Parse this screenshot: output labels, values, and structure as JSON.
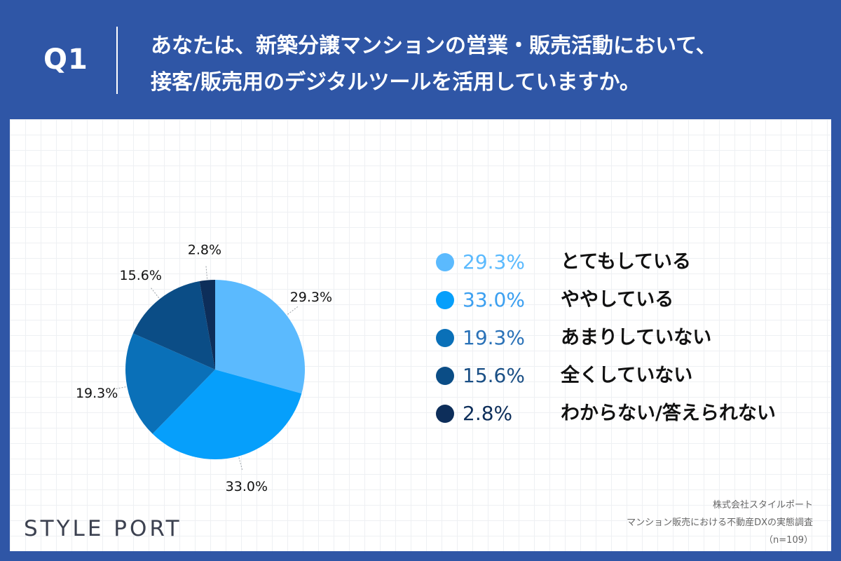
{
  "header": {
    "question_label": "Q1",
    "question_lines": [
      "あなたは、新築分譲マンションの営業・販売活動において、",
      "接客/販売用のデジタルツールを活用していますか。"
    ]
  },
  "chart_data": {
    "type": "pie",
    "title": "",
    "slices": [
      {
        "label": "とてもしている",
        "value": 29.3,
        "display": "29.3%",
        "color": "#5bbafe"
      },
      {
        "label": "ややしている",
        "value": 33.0,
        "display": "33.0%",
        "color": "#069ffb"
      },
      {
        "label": "あまりしていない",
        "value": 19.3,
        "display": "19.3%",
        "color": "#0a70b8"
      },
      {
        "label": "全くしていない",
        "value": 15.6,
        "display": "15.6%",
        "color": "#0b4d86"
      },
      {
        "label": "わからない/答えられない",
        "value": 2.8,
        "display": "2.8%",
        "color": "#0d2e5a"
      }
    ],
    "start": "12 o'clock",
    "direction": "clockwise",
    "legend_placement": "right"
  },
  "legend": {
    "pct_colors": [
      "#5bbafe",
      "#3b9ff0",
      "#2a72b8",
      "#1a4f85",
      "#0d2e5a"
    ]
  },
  "footer": {
    "brand": "STYLE PORT",
    "source_lines": [
      "株式会社スタイルポート",
      "マンション販売における不動産DXの実態調査",
      "（n=109）"
    ]
  },
  "colors": {
    "background": "#2f56a6",
    "panel": "#ffffff"
  }
}
